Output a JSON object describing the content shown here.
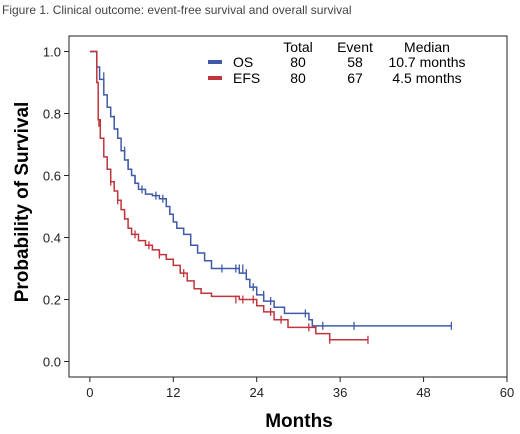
{
  "figure_caption": "Figure 1. Clinical outcome: event-free survival and overall survival",
  "chart_data": {
    "type": "line",
    "title": "",
    "xlabel": "Months",
    "ylabel": "Probability of Survival",
    "xlim": [
      -3,
      60
    ],
    "ylim": [
      -0.05,
      1.05
    ],
    "x_ticks": [
      0,
      12,
      24,
      36,
      48,
      60
    ],
    "y_ticks": [
      0.0,
      0.2,
      0.4,
      0.6,
      0.8,
      1.0
    ],
    "x_tick_labels": [
      "0",
      "12",
      "24",
      "36",
      "48",
      "60"
    ],
    "y_tick_labels": [
      "0.0",
      "0.2",
      "0.4",
      "0.6",
      "0.8",
      "1.0"
    ],
    "grid": false,
    "legend_placement": "top-right",
    "legend_headers": [
      "Total",
      "Event",
      "Median"
    ],
    "series": [
      {
        "name": "OS",
        "color": "#3f5aa8",
        "total": "80",
        "events": "58",
        "median": "10.7 months",
        "steps": [
          [
            0,
            1.0
          ],
          [
            1.0,
            0.95
          ],
          [
            1.4,
            0.91
          ],
          [
            2.0,
            0.86
          ],
          [
            2.5,
            0.82
          ],
          [
            3.0,
            0.79
          ],
          [
            3.5,
            0.75
          ],
          [
            4.0,
            0.72
          ],
          [
            4.5,
            0.68
          ],
          [
            5.0,
            0.65
          ],
          [
            5.5,
            0.62
          ],
          [
            6.0,
            0.6
          ],
          [
            6.5,
            0.575
          ],
          [
            7.0,
            0.555
          ],
          [
            8.0,
            0.54
          ],
          [
            9.0,
            0.535
          ],
          [
            10.0,
            0.525
          ],
          [
            11.0,
            0.5
          ],
          [
            11.5,
            0.475
          ],
          [
            12.0,
            0.45
          ],
          [
            12.5,
            0.43
          ],
          [
            13.5,
            0.41
          ],
          [
            14.5,
            0.375
          ],
          [
            15.5,
            0.35
          ],
          [
            16.5,
            0.325
          ],
          [
            17.5,
            0.3
          ],
          [
            21.5,
            0.285
          ],
          [
            22.5,
            0.265
          ],
          [
            23.0,
            0.24
          ],
          [
            24.0,
            0.215
          ],
          [
            25.0,
            0.195
          ],
          [
            26.5,
            0.175
          ],
          [
            28.0,
            0.155
          ],
          [
            31.5,
            0.135
          ],
          [
            32.0,
            0.115
          ],
          [
            52.0,
            0.115
          ]
        ],
        "censored": [
          [
            2.0,
            0.92
          ],
          [
            3.5,
            0.78
          ],
          [
            4.0,
            0.74
          ],
          [
            5.0,
            0.68
          ],
          [
            5.5,
            0.64
          ],
          [
            6.5,
            0.585
          ],
          [
            7.5,
            0.555
          ],
          [
            9.5,
            0.535
          ],
          [
            10.5,
            0.525
          ],
          [
            19.0,
            0.3
          ],
          [
            21.0,
            0.3
          ],
          [
            21.5,
            0.3
          ],
          [
            22.0,
            0.3
          ],
          [
            22.5,
            0.285
          ],
          [
            23.5,
            0.24
          ],
          [
            25.0,
            0.215
          ],
          [
            26.0,
            0.195
          ],
          [
            31.0,
            0.155
          ],
          [
            33.5,
            0.115
          ],
          [
            38.0,
            0.115
          ],
          [
            52.0,
            0.115
          ]
        ]
      },
      {
        "name": "EFS",
        "color": "#c0343b",
        "total": "80",
        "events": "67",
        "median": "4.5 months",
        "steps": [
          [
            0,
            1.0
          ],
          [
            1.0,
            0.9
          ],
          [
            1.2,
            0.78
          ],
          [
            1.5,
            0.72
          ],
          [
            2.0,
            0.66
          ],
          [
            2.5,
            0.62
          ],
          [
            3.0,
            0.58
          ],
          [
            3.5,
            0.55
          ],
          [
            4.0,
            0.52
          ],
          [
            4.5,
            0.49
          ],
          [
            5.0,
            0.46
          ],
          [
            5.5,
            0.43
          ],
          [
            6.0,
            0.41
          ],
          [
            7.0,
            0.39
          ],
          [
            8.0,
            0.375
          ],
          [
            9.0,
            0.36
          ],
          [
            10.0,
            0.345
          ],
          [
            11.0,
            0.33
          ],
          [
            12.0,
            0.31
          ],
          [
            13.0,
            0.285
          ],
          [
            14.0,
            0.26
          ],
          [
            15.0,
            0.235
          ],
          [
            16.0,
            0.22
          ],
          [
            17.5,
            0.21
          ],
          [
            21.5,
            0.2
          ],
          [
            24.0,
            0.18
          ],
          [
            25.0,
            0.16
          ],
          [
            26.5,
            0.135
          ],
          [
            28.5,
            0.11
          ],
          [
            32.5,
            0.09
          ],
          [
            34.5,
            0.07
          ],
          [
            40.0,
            0.07
          ]
        ],
        "censored": [
          [
            1.3,
            0.77
          ],
          [
            3.0,
            0.58
          ],
          [
            3.5,
            0.57
          ],
          [
            4.0,
            0.52
          ],
          [
            5.0,
            0.47
          ],
          [
            6.5,
            0.41
          ],
          [
            8.5,
            0.375
          ],
          [
            10.0,
            0.345
          ],
          [
            13.5,
            0.285
          ],
          [
            21.0,
            0.2
          ],
          [
            22.0,
            0.2
          ],
          [
            23.5,
            0.2
          ],
          [
            26.0,
            0.16
          ],
          [
            27.5,
            0.135
          ],
          [
            31.5,
            0.11
          ],
          [
            34.5,
            0.07
          ],
          [
            40.0,
            0.07
          ]
        ]
      }
    ]
  }
}
